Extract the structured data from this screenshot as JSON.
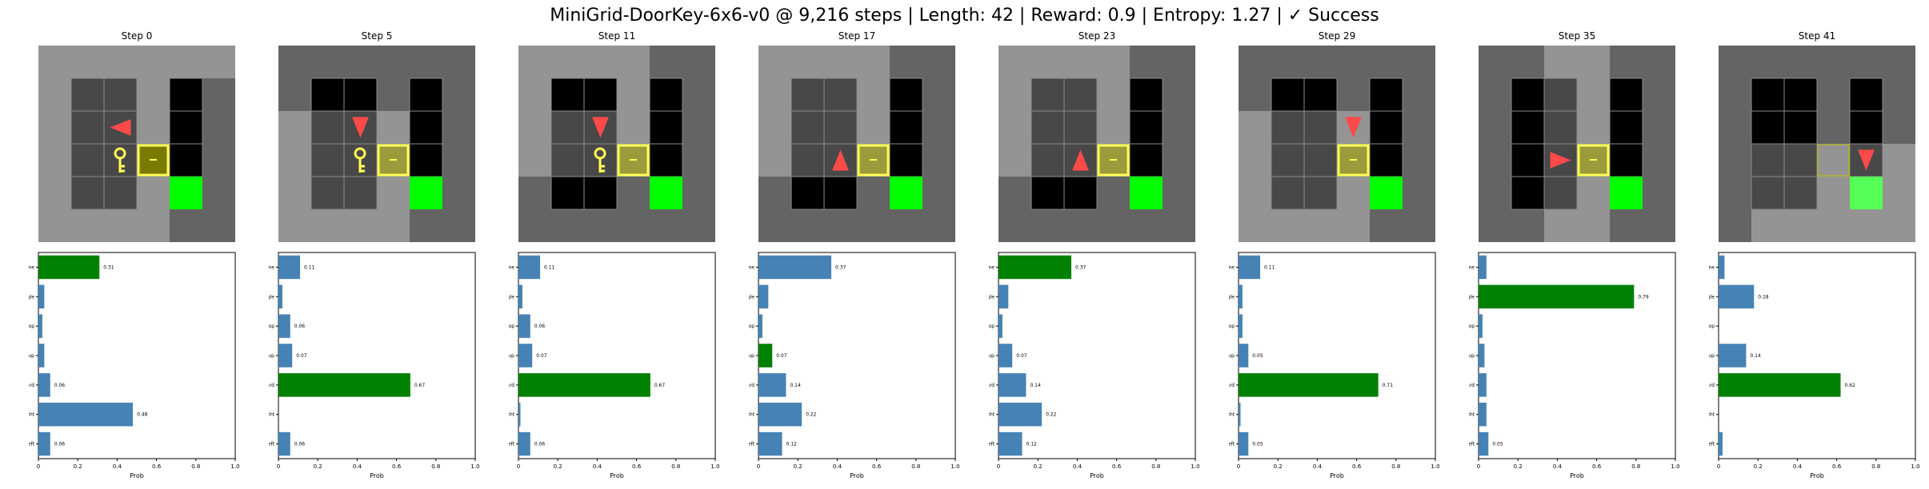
{
  "title": "MiniGrid-DoorKey-6x6-v0 @ 9,216 steps | Length: 42 | Reward: 0.9 | Entropy: 1.27 | ✓ Success",
  "colors": {
    "wall": "#646464",
    "seen_floor": "#949494",
    "floor": "#000000",
    "gridline": "#8c8c8c",
    "agent": "#ff4a4a",
    "key": "#ffff55",
    "door_border": "#ffff55",
    "door_fill_dark": "#7a7a00",
    "door_fill_light": "#9b9b3c",
    "goal": "#00ff00",
    "goal_light": "#55ff55",
    "bar_default": "#4682b4",
    "bar_selected": "#008000"
  },
  "actions": [
    "Left",
    "Right",
    "Forward",
    "Pickup",
    "Drop",
    "Toggle",
    "Done"
  ],
  "xlabel": "Prob",
  "xticks": [
    "0",
    "0.2",
    "0.4",
    "0.6",
    "0.8",
    "1.0"
  ],
  "xlim": [
    0,
    1
  ],
  "panels": [
    {
      "step_label": "Step 0",
      "grid": {
        "lit": [
          [
            0,
            0
          ],
          [
            1,
            0
          ],
          [
            2,
            0
          ],
          [
            3,
            0
          ],
          [
            4,
            0
          ],
          [
            5,
            0
          ],
          [
            0,
            1
          ],
          [
            1,
            1
          ],
          [
            2,
            1
          ],
          [
            3,
            1
          ],
          [
            0,
            2
          ],
          [
            1,
            2
          ],
          [
            2,
            2
          ],
          [
            3,
            2
          ],
          [
            0,
            3
          ],
          [
            1,
            3
          ],
          [
            2,
            3
          ],
          [
            3,
            3
          ],
          [
            0,
            4
          ],
          [
            1,
            4
          ],
          [
            2,
            4
          ],
          [
            3,
            4
          ],
          [
            0,
            5
          ],
          [
            1,
            5
          ],
          [
            2,
            5
          ],
          [
            3,
            5
          ]
        ],
        "agent": {
          "x": 2,
          "y": 2,
          "dir": "left",
          "faded": false
        },
        "key_visible": true,
        "door_dark": true,
        "goal_light": false,
        "floor_dark_cells": [
          [
            4,
            1
          ],
          [
            4,
            2
          ],
          [
            4,
            3
          ]
        ]
      },
      "probs": [
        0.06,
        0.48,
        0.06,
        0.03,
        0.02,
        0.03,
        0.31
      ],
      "selected": "Done",
      "labels": {
        "Left": "0.06",
        "Right": "0.48",
        "Forward": "0.06",
        "Done": "0.31"
      }
    },
    {
      "step_label": "Step 5",
      "grid": {
        "lit": [
          [
            0,
            2
          ],
          [
            1,
            2
          ],
          [
            2,
            2
          ],
          [
            3,
            2
          ],
          [
            0,
            3
          ],
          [
            1,
            3
          ],
          [
            2,
            3
          ],
          [
            3,
            3
          ],
          [
            0,
            4
          ],
          [
            1,
            4
          ],
          [
            2,
            4
          ],
          [
            3,
            4
          ],
          [
            0,
            5
          ],
          [
            1,
            5
          ],
          [
            2,
            5
          ],
          [
            3,
            5
          ]
        ],
        "agent": {
          "x": 2,
          "y": 2,
          "dir": "down",
          "faded": false
        },
        "key_visible": true,
        "door_dark": false,
        "goal_light": false,
        "floor_dark_cells": [
          [
            1,
            1
          ],
          [
            2,
            1
          ],
          [
            4,
            1
          ],
          [
            4,
            2
          ],
          [
            4,
            3
          ]
        ]
      },
      "probs": [
        0.06,
        0.0,
        0.67,
        0.07,
        0.06,
        0.02,
        0.11
      ],
      "selected": "Forward",
      "labels": {
        "Left": "0.06",
        "Forward": "0.67",
        "Pickup": "0.07",
        "Drop": "0.06",
        "Done": "0.11"
      }
    },
    {
      "step_label": "Step 11",
      "grid": {
        "lit": [
          [
            0,
            0
          ],
          [
            1,
            0
          ],
          [
            2,
            0
          ],
          [
            3,
            0
          ],
          [
            0,
            1
          ],
          [
            1,
            1
          ],
          [
            2,
            1
          ],
          [
            3,
            1
          ],
          [
            0,
            2
          ],
          [
            1,
            2
          ],
          [
            2,
            2
          ],
          [
            3,
            2
          ],
          [
            0,
            3
          ],
          [
            1,
            3
          ],
          [
            2,
            3
          ],
          [
            3,
            3
          ]
        ],
        "agent": {
          "x": 2,
          "y": 2,
          "dir": "down",
          "faded": false
        },
        "key_visible": true,
        "door_dark": false,
        "goal_light": false,
        "floor_dark_cells": [
          [
            1,
            1
          ],
          [
            2,
            1
          ],
          [
            4,
            1
          ],
          [
            4,
            2
          ],
          [
            4,
            3
          ]
        ]
      },
      "probs": [
        0.06,
        0.01,
        0.67,
        0.07,
        0.06,
        0.02,
        0.11
      ],
      "selected": "Forward",
      "labels": {
        "Left": "0.06",
        "Forward": "0.67",
        "Pickup": "0.07",
        "Drop": "0.06",
        "Done": "0.11"
      }
    },
    {
      "step_label": "Step 17",
      "grid": {
        "lit": [
          [
            0,
            0
          ],
          [
            1,
            0
          ],
          [
            2,
            0
          ],
          [
            3,
            0
          ],
          [
            0,
            1
          ],
          [
            1,
            1
          ],
          [
            2,
            1
          ],
          [
            3,
            1
          ],
          [
            0,
            2
          ],
          [
            1,
            2
          ],
          [
            2,
            2
          ],
          [
            3,
            2
          ],
          [
            0,
            3
          ],
          [
            1,
            3
          ],
          [
            2,
            3
          ],
          [
            3,
            3
          ]
        ],
        "agent": {
          "x": 2,
          "y": 3,
          "dir": "up",
          "faded": false
        },
        "key_visible": false,
        "door_dark": false,
        "goal_light": false,
        "floor_dark_cells": [
          [
            4,
            1
          ],
          [
            4,
            2
          ],
          [
            4,
            3
          ],
          [
            1,
            4
          ],
          [
            2,
            4
          ]
        ]
      },
      "probs": [
        0.12,
        0.22,
        0.14,
        0.07,
        0.02,
        0.05,
        0.37
      ],
      "selected": "Pickup",
      "labels": {
        "Left": "0.12",
        "Right": "0.22",
        "Forward": "0.14",
        "Pickup": "0.07",
        "Done": "0.37"
      }
    },
    {
      "step_label": "Step 23",
      "grid": {
        "lit": [
          [
            0,
            0
          ],
          [
            1,
            0
          ],
          [
            2,
            0
          ],
          [
            3,
            0
          ],
          [
            0,
            1
          ],
          [
            1,
            1
          ],
          [
            2,
            1
          ],
          [
            3,
            1
          ],
          [
            0,
            2
          ],
          [
            1,
            2
          ],
          [
            2,
            2
          ],
          [
            3,
            2
          ],
          [
            0,
            3
          ],
          [
            1,
            3
          ],
          [
            2,
            3
          ],
          [
            3,
            3
          ]
        ],
        "agent": {
          "x": 2,
          "y": 3,
          "dir": "up",
          "faded": false
        },
        "key_visible": false,
        "door_dark": false,
        "goal_light": false,
        "floor_dark_cells": [
          [
            4,
            1
          ],
          [
            4,
            2
          ],
          [
            4,
            3
          ],
          [
            1,
            4
          ],
          [
            2,
            4
          ]
        ]
      },
      "probs": [
        0.12,
        0.22,
        0.14,
        0.07,
        0.02,
        0.05,
        0.37
      ],
      "selected": "Done",
      "labels": {
        "Left": "0.12",
        "Right": "0.22",
        "Forward": "0.14",
        "Pickup": "0.07",
        "Done": "0.37"
      }
    },
    {
      "step_label": "Step 29",
      "grid": {
        "lit": [
          [
            0,
            2
          ],
          [
            1,
            2
          ],
          [
            2,
            2
          ],
          [
            3,
            2
          ],
          [
            0,
            3
          ],
          [
            1,
            3
          ],
          [
            2,
            3
          ],
          [
            3,
            3
          ],
          [
            0,
            4
          ],
          [
            1,
            4
          ],
          [
            2,
            4
          ],
          [
            3,
            4
          ],
          [
            0,
            5
          ],
          [
            1,
            5
          ],
          [
            2,
            5
          ],
          [
            3,
            5
          ]
        ],
        "agent": {
          "x": 3,
          "y": 2,
          "dir": "down",
          "faded": false
        },
        "key_visible": false,
        "door_dark": false,
        "goal_light": false,
        "floor_dark_cells": [
          [
            2,
            1
          ],
          [
            3,
            1
          ],
          [
            4,
            1
          ],
          [
            4,
            2
          ],
          [
            4,
            3
          ]
        ]
      },
      "probs": [
        0.05,
        0.01,
        0.71,
        0.05,
        0.02,
        0.02,
        0.11
      ],
      "selected": "Forward",
      "labels": {
        "Left": "0.05",
        "Forward": "0.71",
        "Pickup": "0.05",
        "Done": "0.11"
      }
    },
    {
      "step_label": "Step 35",
      "grid": {
        "lit": [
          [
            2,
            0
          ],
          [
            3,
            0
          ],
          [
            2,
            1
          ],
          [
            3,
            1
          ],
          [
            2,
            2
          ],
          [
            3,
            2
          ],
          [
            2,
            3
          ],
          [
            3,
            3
          ],
          [
            2,
            4
          ],
          [
            3,
            4
          ],
          [
            2,
            5
          ],
          [
            3,
            5
          ]
        ],
        "agent": {
          "x": 2,
          "y": 3,
          "dir": "right",
          "faded": false
        },
        "key_visible": false,
        "door_dark": false,
        "goal_light": false,
        "floor_dark_cells": [
          [
            1,
            1
          ],
          [
            1,
            2
          ],
          [
            1,
            3
          ],
          [
            1,
            4
          ],
          [
            4,
            1
          ],
          [
            4,
            2
          ],
          [
            4,
            3
          ]
        ]
      },
      "probs": [
        0.05,
        0.04,
        0.04,
        0.03,
        0.02,
        0.79,
        0.04
      ],
      "selected": "Toggle",
      "labels": {
        "Left": "0.05",
        "Toggle": "0.79"
      }
    },
    {
      "step_label": "Step 41",
      "grid": {
        "lit": [
          [
            1,
            3
          ],
          [
            2,
            3
          ],
          [
            3,
            3
          ],
          [
            4,
            3
          ],
          [
            5,
            3
          ],
          [
            1,
            4
          ],
          [
            2,
            4
          ],
          [
            3,
            4
          ],
          [
            4,
            4
          ],
          [
            5,
            4
          ],
          [
            1,
            5
          ],
          [
            2,
            5
          ],
          [
            3,
            5
          ],
          [
            4,
            5
          ],
          [
            5,
            5
          ]
        ],
        "agent": {
          "x": 4,
          "y": 3,
          "dir": "down",
          "faded": true
        },
        "key_visible": false,
        "door_dark": false,
        "door_open": true,
        "goal_light": true,
        "floor_dark_cells": [
          [
            1,
            1
          ],
          [
            2,
            1
          ],
          [
            3,
            1
          ],
          [
            4,
            1
          ],
          [
            1,
            2
          ],
          [
            2,
            2
          ],
          [
            3,
            2
          ],
          [
            4,
            2
          ]
        ]
      },
      "probs": [
        0.02,
        0.0,
        0.62,
        0.14,
        0.0,
        0.18,
        0.03
      ],
      "selected": "Forward",
      "labels": {
        "Forward": "0.62",
        "Pickup": "0.14",
        "Toggle": "0.18"
      }
    }
  ],
  "chart_data": [
    {
      "type": "bar",
      "title": "Step 0",
      "categories": [
        "Left",
        "Right",
        "Forward",
        "Pickup",
        "Drop",
        "Toggle",
        "Done"
      ],
      "values": [
        0.06,
        0.48,
        0.06,
        0.03,
        0.02,
        0.03,
        0.31
      ],
      "xlabel": "Prob",
      "xlim": [
        0,
        1
      ]
    },
    {
      "type": "bar",
      "title": "Step 5",
      "categories": [
        "Left",
        "Right",
        "Forward",
        "Pickup",
        "Drop",
        "Toggle",
        "Done"
      ],
      "values": [
        0.06,
        0.0,
        0.67,
        0.07,
        0.06,
        0.02,
        0.11
      ],
      "xlabel": "Prob",
      "xlim": [
        0,
        1
      ]
    },
    {
      "type": "bar",
      "title": "Step 11",
      "categories": [
        "Left",
        "Right",
        "Forward",
        "Pickup",
        "Drop",
        "Toggle",
        "Done"
      ],
      "values": [
        0.06,
        0.01,
        0.67,
        0.07,
        0.06,
        0.02,
        0.11
      ],
      "xlabel": "Prob",
      "xlim": [
        0,
        1
      ]
    },
    {
      "type": "bar",
      "title": "Step 17",
      "categories": [
        "Left",
        "Right",
        "Forward",
        "Pickup",
        "Drop",
        "Toggle",
        "Done"
      ],
      "values": [
        0.12,
        0.22,
        0.14,
        0.07,
        0.02,
        0.05,
        0.37
      ],
      "xlabel": "Prob",
      "xlim": [
        0,
        1
      ]
    },
    {
      "type": "bar",
      "title": "Step 23",
      "categories": [
        "Left",
        "Right",
        "Forward",
        "Pickup",
        "Drop",
        "Toggle",
        "Done"
      ],
      "values": [
        0.12,
        0.22,
        0.14,
        0.07,
        0.02,
        0.05,
        0.37
      ],
      "xlabel": "Prob",
      "xlim": [
        0,
        1
      ]
    },
    {
      "type": "bar",
      "title": "Step 29",
      "categories": [
        "Left",
        "Right",
        "Forward",
        "Pickup",
        "Drop",
        "Toggle",
        "Done"
      ],
      "values": [
        0.05,
        0.01,
        0.71,
        0.05,
        0.02,
        0.02,
        0.11
      ],
      "xlabel": "Prob",
      "xlim": [
        0,
        1
      ]
    },
    {
      "type": "bar",
      "title": "Step 35",
      "categories": [
        "Left",
        "Right",
        "Forward",
        "Pickup",
        "Drop",
        "Toggle",
        "Done"
      ],
      "values": [
        0.05,
        0.04,
        0.04,
        0.03,
        0.02,
        0.79,
        0.04
      ],
      "xlabel": "Prob",
      "xlim": [
        0,
        1
      ]
    },
    {
      "type": "bar",
      "title": "Step 41",
      "categories": [
        "Left",
        "Right",
        "Forward",
        "Pickup",
        "Drop",
        "Toggle",
        "Done"
      ],
      "values": [
        0.02,
        0.0,
        0.62,
        0.14,
        0.0,
        0.18,
        0.03
      ],
      "xlabel": "Prob",
      "xlim": [
        0,
        1
      ]
    }
  ]
}
